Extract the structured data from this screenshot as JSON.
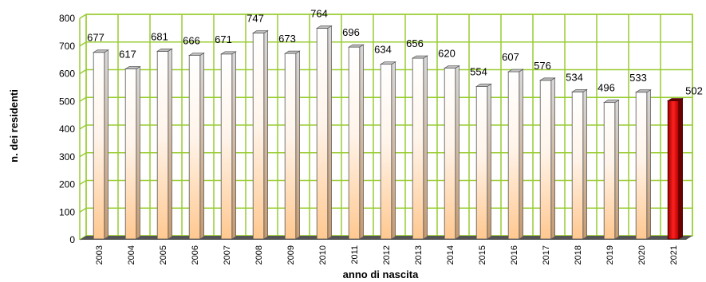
{
  "chart_data": {
    "type": "bar",
    "title": "",
    "xlabel": "anno di nascita",
    "ylabel": "n. dei residenti",
    "categories": [
      "2003",
      "2004",
      "2005",
      "2006",
      "2007",
      "2008",
      "2009",
      "2010",
      "2011",
      "2012",
      "2013",
      "2014",
      "2015",
      "2016",
      "2017",
      "2018",
      "2019",
      "2020",
      "2021"
    ],
    "values": [
      677,
      617,
      681,
      666,
      671,
      747,
      673,
      764,
      696,
      634,
      656,
      620,
      554,
      607,
      576,
      534,
      496,
      533,
      502
    ],
    "ylim": [
      0,
      800
    ],
    "yticks": [
      0,
      100,
      200,
      300,
      400,
      500,
      600,
      700,
      800
    ],
    "grid": true,
    "colors": {
      "grid": "#99cc33",
      "floor": "#555555",
      "bar_top": "#ffffff",
      "bar_bottom": "#ffcc99",
      "highlight_top": "#ff1a1a",
      "highlight_bottom": "#990000",
      "highlight_cap": "#660000"
    },
    "highlight_category": "2021"
  }
}
